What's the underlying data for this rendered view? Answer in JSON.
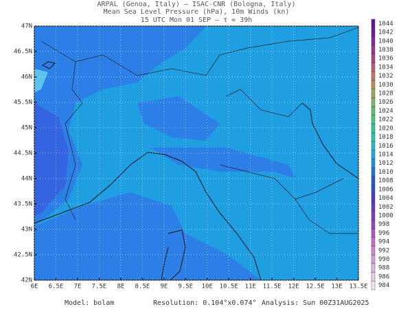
{
  "header": {
    "line1": "ARPAL (Genoa, Italy)  —  ISAC-CNR (Bologna, Italy)",
    "line2": "Mean Sea Level Pressure (hPa), 10m Winds (kn)",
    "line3": "15 UTC Mon 01 SEP  —  τ = 39h"
  },
  "map": {
    "lon_range": [
      6,
      13.5
    ],
    "lat_range": [
      42,
      47
    ],
    "lon_ticks": [
      {
        "value": 6,
        "label": "6E"
      },
      {
        "value": 6.5,
        "label": "6.5E"
      },
      {
        "value": 7,
        "label": "7E"
      },
      {
        "value": 7.5,
        "label": "7.5E"
      },
      {
        "value": 8,
        "label": "8E"
      },
      {
        "value": 8.5,
        "label": "8.5E"
      },
      {
        "value": 9,
        "label": "9E"
      },
      {
        "value": 9.5,
        "label": "9.5E"
      },
      {
        "value": 10,
        "label": "10E"
      },
      {
        "value": 10.5,
        "label": "10.5E"
      },
      {
        "value": 11,
        "label": "11E"
      },
      {
        "value": 11.5,
        "label": "11.5E"
      },
      {
        "value": 12,
        "label": "12E"
      },
      {
        "value": 12.5,
        "label": "12.5E"
      },
      {
        "value": 13,
        "label": "13E"
      },
      {
        "value": 13.5,
        "label": "13.5E"
      }
    ],
    "lat_ticks": [
      {
        "value": 42,
        "label": "42N"
      },
      {
        "value": 42.5,
        "label": "42.5N"
      },
      {
        "value": 43,
        "label": "43N"
      },
      {
        "value": 43.5,
        "label": "43.5N"
      },
      {
        "value": 44,
        "label": "44N"
      },
      {
        "value": 44.5,
        "label": "44.5N"
      },
      {
        "value": 45,
        "label": "45N"
      },
      {
        "value": 45.5,
        "label": "45.5N"
      },
      {
        "value": 46,
        "label": "46N"
      },
      {
        "value": 46.5,
        "label": "46.5N"
      },
      {
        "value": 47,
        "label": "47N"
      }
    ]
  },
  "colorbar": {
    "levels": [
      984,
      986,
      988,
      990,
      992,
      994,
      996,
      998,
      1000,
      1002,
      1004,
      1006,
      1008,
      1010,
      1012,
      1014,
      1016,
      1018,
      1020,
      1022,
      1024,
      1026,
      1028,
      1030,
      1032,
      1034,
      1036,
      1038,
      1040,
      1042,
      1044
    ],
    "colors": [
      "#f0e8f0",
      "#e8d0e8",
      "#e0b8e0",
      "#d8a0d8",
      "#d088d0",
      "#c070c8",
      "#b058c0",
      "#9848b8",
      "#8040b8",
      "#6838c0",
      "#5038c8",
      "#3848d0",
      "#2858d8",
      "#2070e0",
      "#2090e0",
      "#20a8e0",
      "#20c0c8",
      "#20c8b0",
      "#30c898",
      "#48c880",
      "#60c070",
      "#80b868",
      "#a0a860",
      "#b89058",
      "#c07868",
      "#b86078",
      "#a84888",
      "#983898",
      "#8828a0",
      "#7818a0",
      "#601890"
    ]
  },
  "footer": {
    "model": "Model: bolam",
    "resolution": "Resolution: 0.104°x0.074°",
    "analysis": "Analysis: Sun 00Z31AUG2025"
  }
}
